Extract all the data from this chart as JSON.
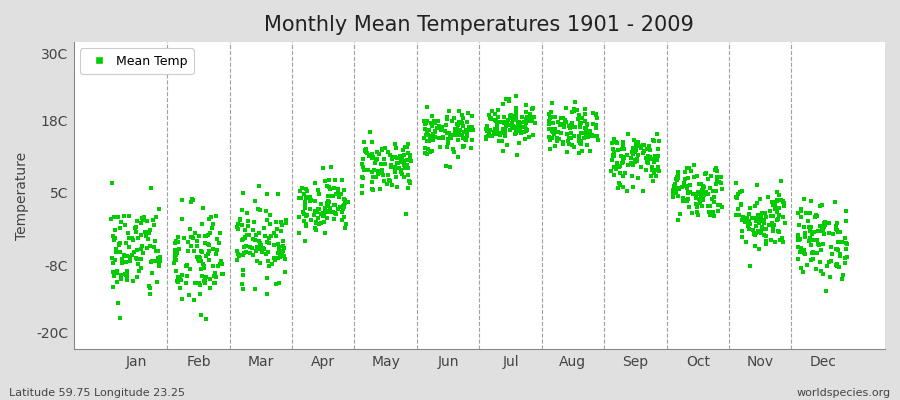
{
  "title": "Monthly Mean Temperatures 1901 - 2009",
  "ylabel": "Temperature",
  "xlabel_bottom_left": "Latitude 59.75 Longitude 23.25",
  "xlabel_bottom_right": "worldspecies.org",
  "legend_label": "Mean Temp",
  "marker_color": "#00CC00",
  "figure_bg_color": "#E0E0E0",
  "plot_bg_color": "#FFFFFF",
  "yticks": [
    -20,
    -8,
    5,
    18,
    30
  ],
  "ytick_labels": [
    "-20C",
    "-8C",
    "5C",
    "18C",
    "30C"
  ],
  "ylim": [
    -23,
    32
  ],
  "xlim": [
    0.0,
    13.0
  ],
  "years": 109,
  "monthly_means": [
    -5.5,
    -7.0,
    -3.5,
    3.0,
    10.0,
    15.5,
    17.5,
    16.0,
    11.0,
    5.5,
    0.5,
    -3.5
  ],
  "monthly_stds": [
    4.5,
    5.0,
    3.5,
    2.5,
    2.5,
    2.0,
    2.0,
    2.0,
    2.5,
    2.5,
    3.0,
    3.5
  ],
  "seed": 42,
  "title_fontsize": 15,
  "axis_fontsize": 10,
  "legend_fontsize": 9,
  "tick_fontsize": 10,
  "month_labels": [
    "Jan",
    "Feb",
    "Mar",
    "Apr",
    "May",
    "Jun",
    "Jul",
    "Aug",
    "Sep",
    "Oct",
    "Nov",
    "Dec"
  ],
  "dashed_line_color": "#888888",
  "spine_color": "#888888"
}
